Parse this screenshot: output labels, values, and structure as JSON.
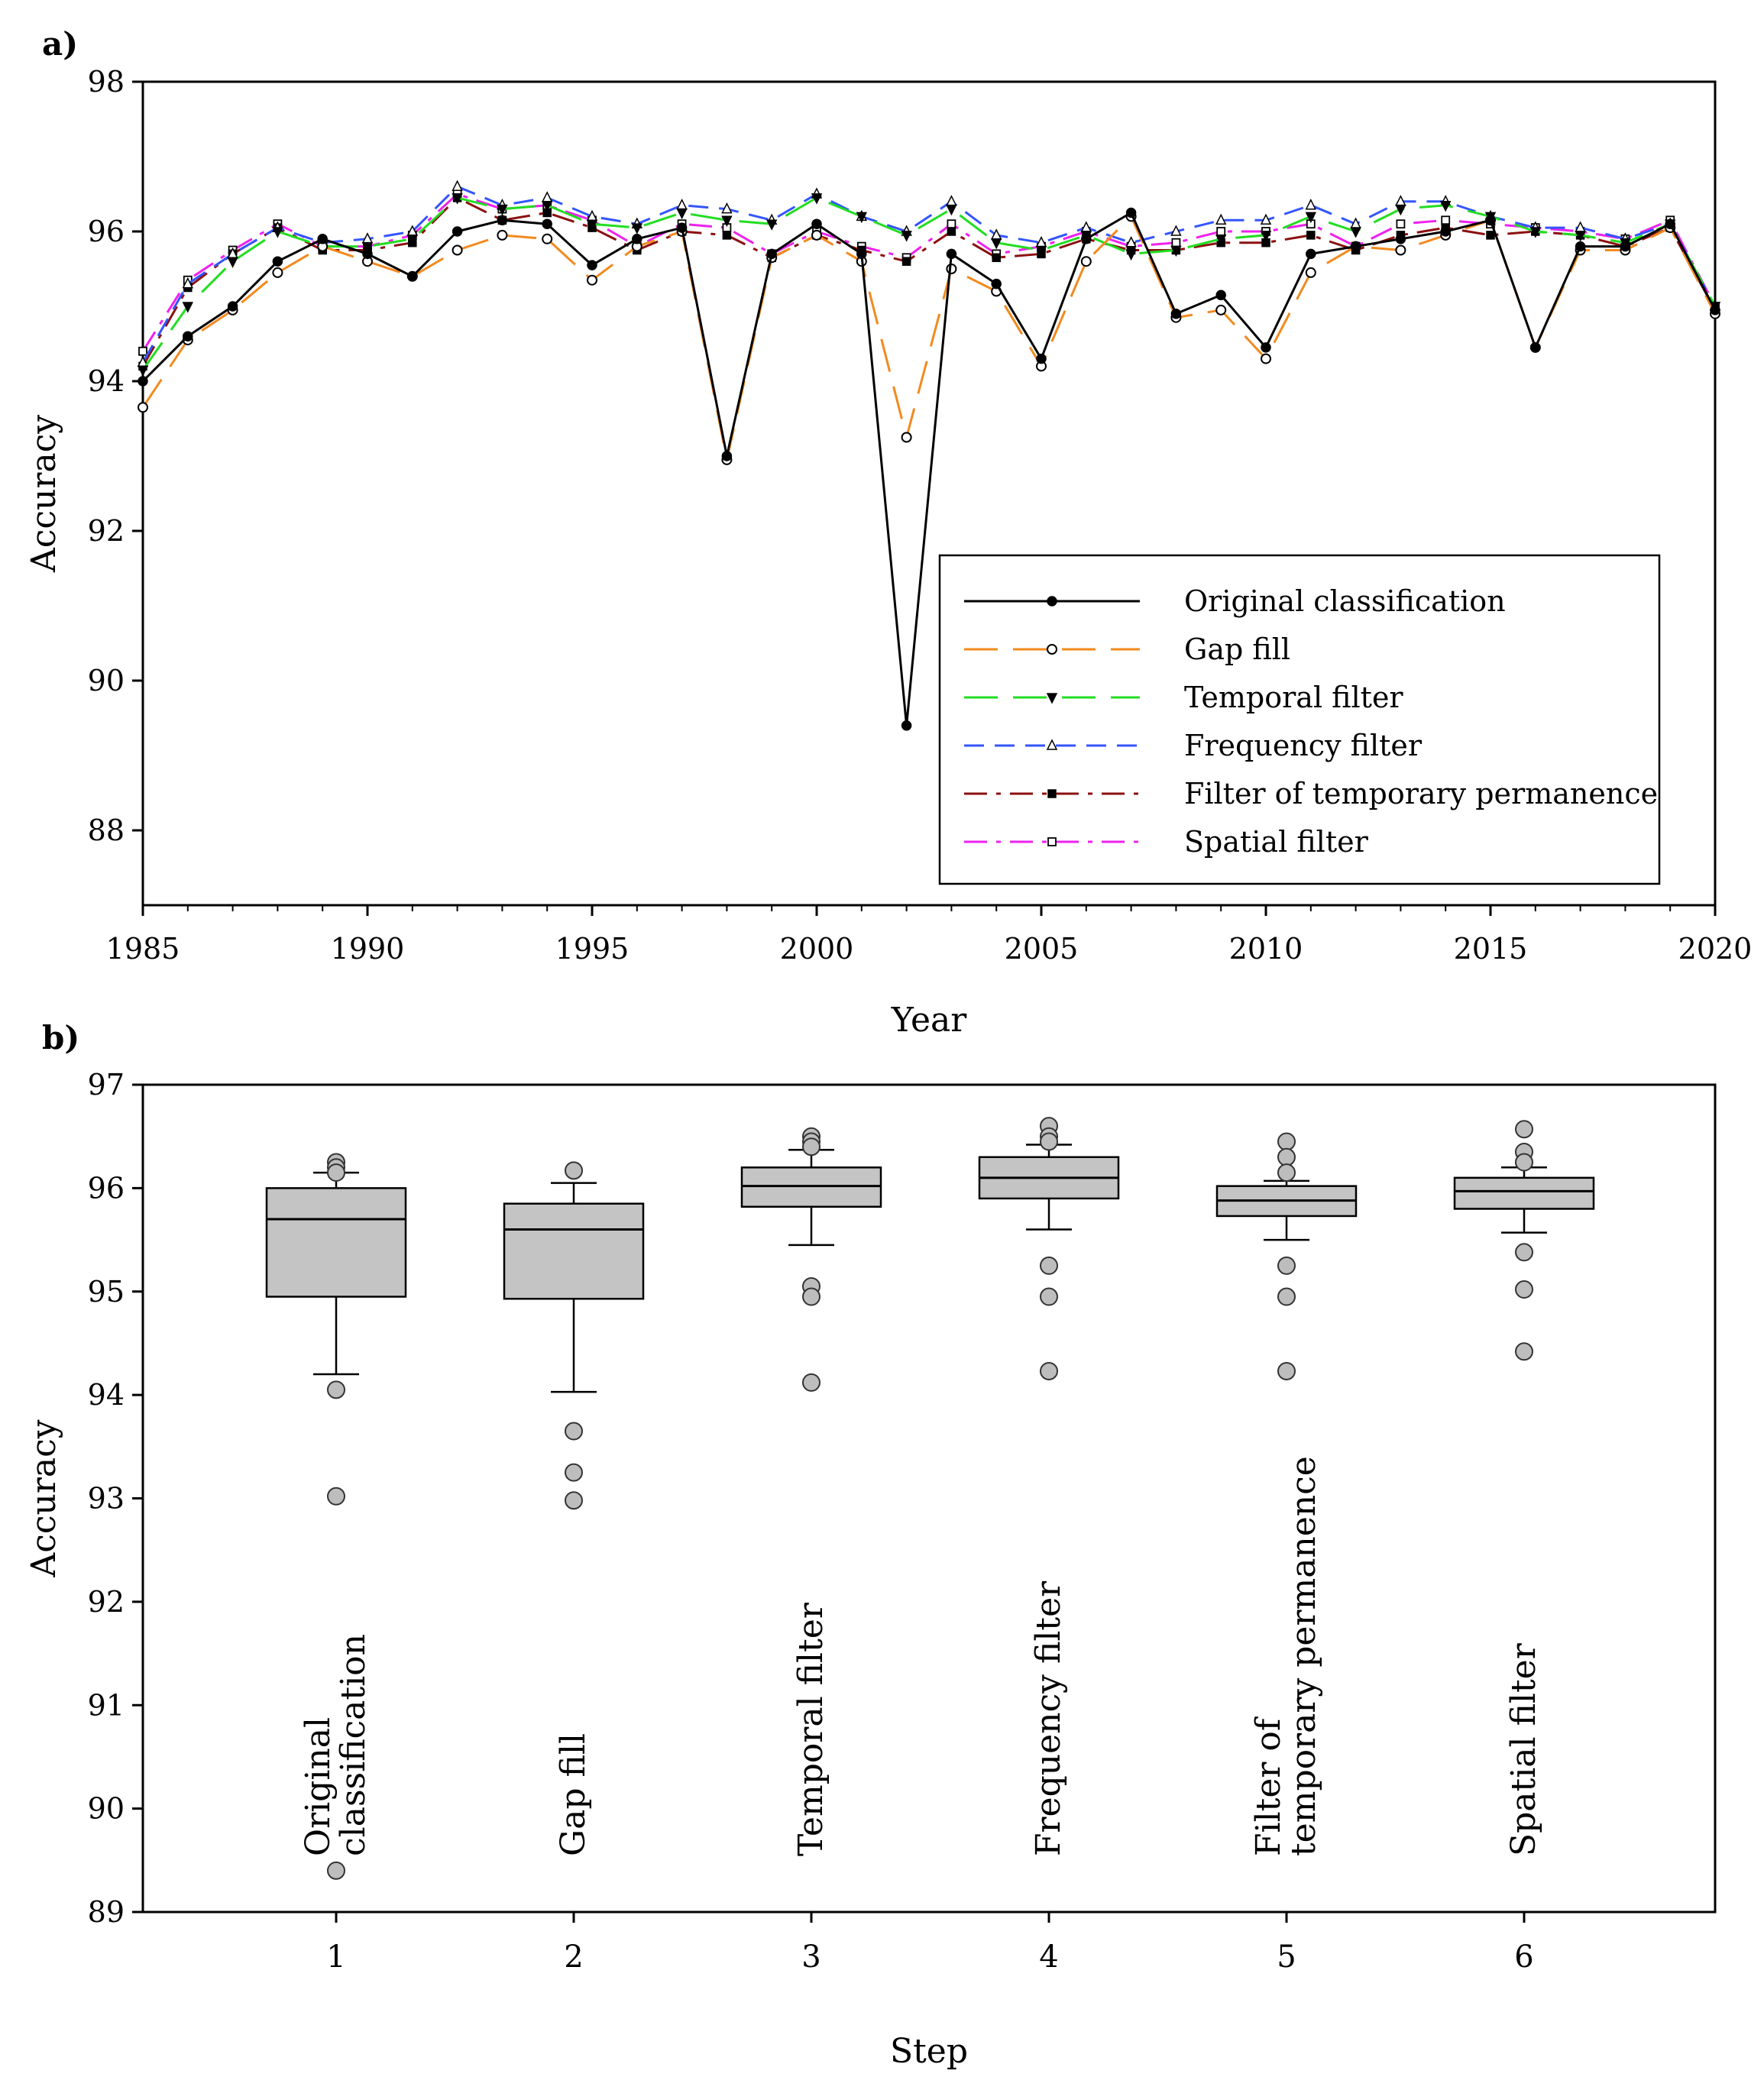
{
  "chart_data": [
    {
      "panel_label": "a)",
      "type": "line",
      "xlabel": "Year",
      "ylabel": "Accuracy",
      "xlim": [
        1985,
        2020
      ],
      "ylim": [
        87,
        98
      ],
      "xticks": [
        1985,
        1990,
        1995,
        2000,
        2005,
        2010,
        2015,
        2020
      ],
      "yticks": [
        88,
        90,
        92,
        94,
        96,
        98
      ],
      "x": [
        1985,
        1986,
        1987,
        1988,
        1989,
        1990,
        1991,
        1992,
        1993,
        1994,
        1995,
        1996,
        1997,
        1998,
        1999,
        2000,
        2001,
        2002,
        2003,
        2004,
        2005,
        2006,
        2007,
        2008,
        2009,
        2010,
        2011,
        2012,
        2013,
        2014,
        2015,
        2016,
        2017,
        2018,
        2019,
        2020
      ],
      "legend_position": "lower-right",
      "series": [
        {
          "name": "Original classification",
          "color": "#000000",
          "dash": "solid",
          "marker": "filled-circle",
          "values": [
            94.0,
            94.6,
            95.0,
            95.6,
            95.9,
            95.7,
            95.4,
            96.0,
            96.15,
            96.1,
            95.55,
            95.9,
            96.05,
            93.0,
            95.7,
            96.1,
            95.7,
            89.4,
            95.7,
            95.3,
            94.3,
            95.9,
            96.25,
            94.9,
            95.15,
            94.45,
            95.7,
            95.8,
            95.9,
            96.0,
            96.15,
            94.45,
            95.8,
            95.8,
            96.1,
            94.95
          ]
        },
        {
          "name": "Gap fill",
          "color": "#f28a1e",
          "dash": "long-dash",
          "marker": "open-circle",
          "values": [
            93.65,
            94.55,
            94.95,
            95.45,
            95.8,
            95.6,
            95.4,
            95.75,
            95.95,
            95.9,
            95.35,
            95.8,
            96.0,
            92.95,
            95.65,
            95.95,
            95.6,
            93.25,
            95.5,
            95.2,
            94.2,
            95.6,
            96.2,
            94.85,
            94.95,
            94.3,
            95.45,
            95.8,
            95.75,
            95.95,
            96.15,
            94.45,
            95.75,
            95.75,
            96.05,
            94.9
          ]
        },
        {
          "name": "Temporal filter",
          "color": "#22dd22",
          "dash": "long-dash",
          "marker": "filled-down-triangle",
          "values": [
            94.15,
            95.0,
            95.6,
            96.0,
            95.8,
            95.8,
            95.9,
            96.45,
            96.3,
            96.35,
            96.1,
            96.05,
            96.25,
            96.15,
            96.1,
            96.45,
            96.2,
            95.95,
            96.3,
            95.85,
            95.75,
            95.95,
            95.7,
            95.75,
            95.9,
            95.95,
            96.2,
            96.0,
            96.3,
            96.35,
            96.2,
            96.0,
            95.95,
            95.85,
            96.1,
            95.0
          ]
        },
        {
          "name": "Frequency filter",
          "color": "#3355ff",
          "dash": "dash",
          "marker": "open-up-triangle",
          "values": [
            94.25,
            95.3,
            95.7,
            96.05,
            95.85,
            95.9,
            96.0,
            96.6,
            96.35,
            96.45,
            96.2,
            96.1,
            96.35,
            96.3,
            96.15,
            96.5,
            96.2,
            96.0,
            96.4,
            95.95,
            95.85,
            96.05,
            95.85,
            96.0,
            96.15,
            96.15,
            96.35,
            96.1,
            96.4,
            96.4,
            96.2,
            96.05,
            96.05,
            95.9,
            96.1,
            95.0
          ]
        },
        {
          "name": "Filter of temporary permanence",
          "color": "#8b1010",
          "dash": "dash-dot",
          "marker": "filled-square",
          "values": [
            94.2,
            95.25,
            95.7,
            96.05,
            95.75,
            95.75,
            95.85,
            96.45,
            96.15,
            96.25,
            96.05,
            95.75,
            96.0,
            95.95,
            95.65,
            95.95,
            95.75,
            95.6,
            96.0,
            95.65,
            95.7,
            95.9,
            95.75,
            95.75,
            95.85,
            95.85,
            95.95,
            95.75,
            95.95,
            96.05,
            95.95,
            96.0,
            95.95,
            95.8,
            96.05,
            94.95
          ]
        },
        {
          "name": "Spatial filter",
          "color": "#ee22ee",
          "dash": "dash-dot",
          "marker": "open-square",
          "values": [
            94.4,
            95.35,
            95.75,
            96.1,
            95.8,
            95.8,
            95.95,
            96.5,
            96.3,
            96.35,
            96.15,
            95.8,
            96.1,
            96.05,
            95.7,
            96.0,
            95.8,
            95.65,
            96.1,
            95.7,
            95.8,
            96.0,
            95.8,
            95.85,
            96.0,
            96.0,
            96.1,
            95.8,
            96.1,
            96.15,
            96.1,
            96.05,
            96.0,
            95.9,
            96.15,
            95.0
          ]
        }
      ]
    },
    {
      "panel_label": "b)",
      "type": "box",
      "xlabel": "Step",
      "ylabel": "Accuracy",
      "ylim": [
        89,
        97
      ],
      "yticks": [
        89,
        90,
        91,
        92,
        93,
        94,
        95,
        96,
        97
      ],
      "categories": [
        "1",
        "2",
        "3",
        "4",
        "5",
        "6"
      ],
      "category_labels": [
        "Original classification",
        "Gap fill",
        "Temporal filter",
        "Frequency filter",
        "Filter of temporary permanence",
        "Spatial filter"
      ],
      "boxes": [
        {
          "whisker_low": 94.2,
          "q1": 94.95,
          "median": 95.7,
          "q3": 96.0,
          "whisker_high": 96.15,
          "outliers": [
            96.25,
            96.2,
            96.15,
            94.05,
            93.02,
            89.4
          ]
        },
        {
          "whisker_low": 94.03,
          "q1": 94.93,
          "median": 95.6,
          "q3": 95.85,
          "whisker_high": 96.05,
          "outliers": [
            96.17,
            93.65,
            93.25,
            92.98
          ]
        },
        {
          "whisker_low": 95.45,
          "q1": 95.82,
          "median": 96.02,
          "q3": 96.2,
          "whisker_high": 96.37,
          "outliers": [
            96.5,
            96.45,
            96.4,
            95.05,
            94.95,
            94.12
          ]
        },
        {
          "whisker_low": 95.6,
          "q1": 95.9,
          "median": 96.1,
          "q3": 96.3,
          "whisker_high": 96.42,
          "outliers": [
            96.6,
            96.5,
            96.45,
            95.25,
            94.95,
            94.23
          ]
        },
        {
          "whisker_low": 95.5,
          "q1": 95.73,
          "median": 95.88,
          "q3": 96.02,
          "whisker_high": 96.07,
          "outliers": [
            96.45,
            96.3,
            96.15,
            95.25,
            94.95,
            94.23
          ]
        },
        {
          "whisker_low": 95.57,
          "q1": 95.8,
          "median": 95.97,
          "q3": 96.1,
          "whisker_high": 96.2,
          "outliers": [
            96.57,
            96.35,
            96.25,
            95.38,
            95.02,
            94.42
          ]
        }
      ]
    }
  ]
}
